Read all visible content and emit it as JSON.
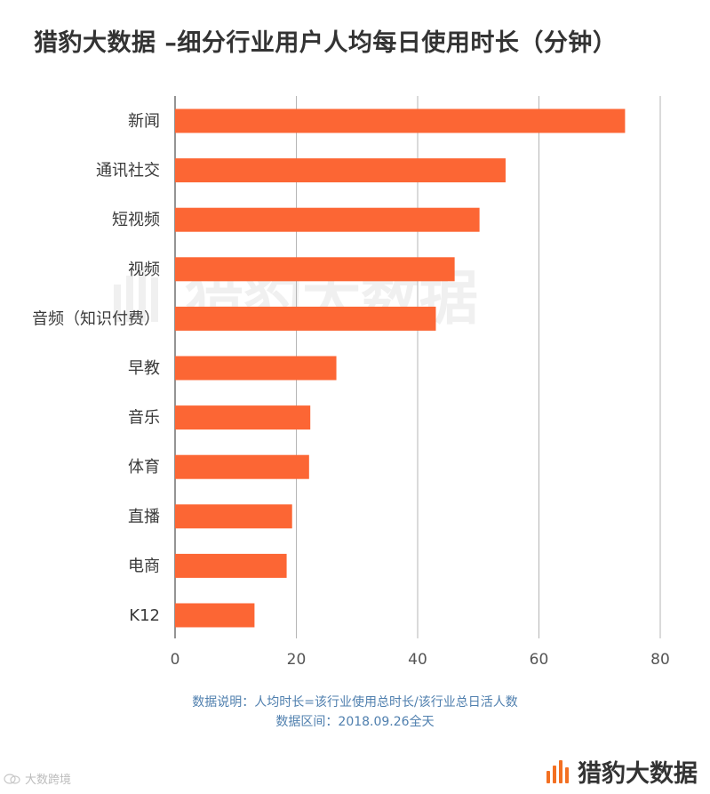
{
  "title": "猎豹大数据 –细分行业用户人均每日使用时长（分钟）",
  "watermark": "猎豹大数据",
  "chart_data": {
    "type": "bar",
    "orientation": "horizontal",
    "categories": [
      "新闻",
      "通讯社交",
      "短视频",
      "视频",
      "音频（知识付费）",
      "早教",
      "音乐",
      "体育",
      "直播",
      "电商",
      "K12"
    ],
    "values": [
      74.2,
      54.5,
      50.2,
      46.1,
      43.0,
      26.6,
      22.3,
      22.1,
      19.3,
      18.4,
      13.1
    ],
    "xlim": [
      0,
      80
    ],
    "xticks": [
      0,
      20,
      40,
      60,
      80
    ],
    "xticklabels": [
      "0",
      "20",
      "40",
      "60",
      "80"
    ],
    "grid": true,
    "bar_color": "#fc6634"
  },
  "notes": {
    "line1": "数据说明：人均时长=该行业使用总时长/该行业总日活人数",
    "line2": "数据区间：2018.09.26全天"
  },
  "brand": {
    "text": "猎豹大数据",
    "accent": "#f37022"
  },
  "corner_watermark": {
    "text": "大数跨境"
  }
}
